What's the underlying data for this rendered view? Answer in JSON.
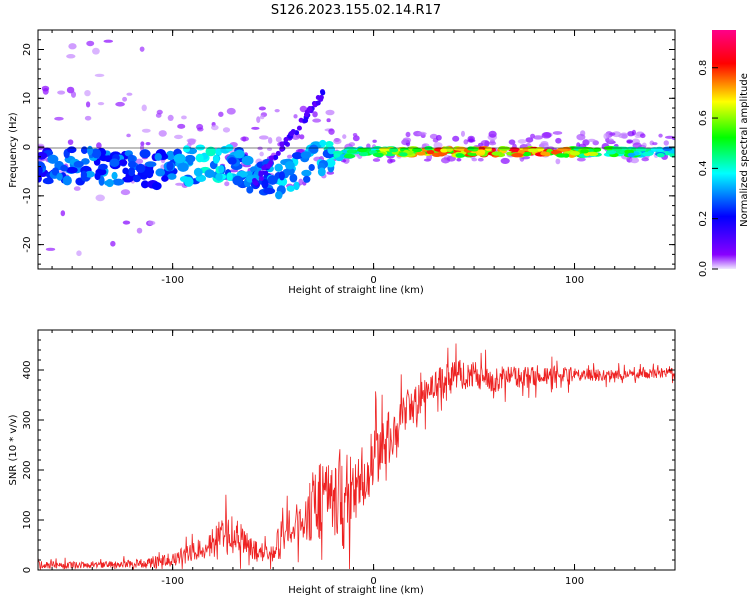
{
  "figure_title": "S126.2023.155.02.14.R17",
  "chart_data": [
    {
      "type": "heatmap",
      "title": "",
      "xlabel": "Height of straight line (km)",
      "ylabel": "Frequency (Hz)",
      "xlim": [
        -167,
        150
      ],
      "ylim": [
        -25,
        24
      ],
      "xticks": [
        -100,
        0,
        100
      ],
      "yticks": [
        -20,
        -10,
        0,
        10,
        20
      ],
      "colorbar": {
        "label": "Normalized spectral amplitude",
        "range": [
          0.0,
          0.95
        ],
        "ticks": [
          0.0,
          0.2,
          0.4,
          0.6,
          0.8
        ],
        "colors": [
          "#f0e8ff",
          "#8800ff",
          "#0000ff",
          "#00ffff",
          "#00ff00",
          "#ffff00",
          "#ff0000",
          "#ff0088"
        ]
      },
      "ridge": {
        "x": [
          -165,
          -150,
          -130,
          -110,
          -95,
          -80,
          -70,
          -60,
          -50,
          -40,
          -30,
          -20,
          -10,
          0,
          10,
          30,
          60,
          90,
          120,
          147
        ],
        "y": [
          -4,
          -4,
          -4,
          -5,
          -4,
          -3,
          -3,
          -6,
          -7,
          -5,
          -3,
          -2,
          -1,
          -1,
          -1,
          -1,
          -1,
          -1,
          -1,
          -1
        ],
        "amplitude": [
          0.3,
          0.35,
          0.35,
          0.3,
          0.4,
          0.45,
          0.4,
          0.35,
          0.4,
          0.4,
          0.45,
          0.45,
          0.55,
          0.65,
          0.75,
          0.85,
          0.9,
          0.9,
          0.6,
          0.45
        ]
      }
    },
    {
      "type": "line",
      "title": "",
      "xlabel": "Height of straight line (km)",
      "ylabel": "SNR (10 * v/v)",
      "xlim": [
        -167,
        150
      ],
      "ylim": [
        0,
        480
      ],
      "xticks": [
        -100,
        0,
        100
      ],
      "yticks": [
        0,
        100,
        200,
        300,
        400
      ],
      "color": "#ee2222",
      "envelope": {
        "x": [
          -167,
          -140,
          -120,
          -110,
          -100,
          -90,
          -80,
          -75,
          -70,
          -60,
          -50,
          -45,
          -40,
          -35,
          -30,
          -25,
          -20,
          -15,
          -10,
          -5,
          0,
          10,
          20,
          30,
          40,
          50,
          60,
          80,
          100,
          120,
          150
        ],
        "mean": [
          10,
          10,
          12,
          15,
          20,
          35,
          55,
          70,
          70,
          40,
          30,
          60,
          100,
          90,
          130,
          150,
          130,
          150,
          150,
          190,
          220,
          280,
          330,
          370,
          390,
          390,
          380,
          390,
          390,
          390,
          395
        ],
        "spread": [
          15,
          12,
          15,
          25,
          30,
          40,
          60,
          80,
          80,
          40,
          35,
          70,
          80,
          60,
          150,
          200,
          120,
          250,
          120,
          130,
          120,
          100,
          70,
          60,
          60,
          55,
          50,
          40,
          30,
          20,
          20
        ]
      }
    }
  ]
}
